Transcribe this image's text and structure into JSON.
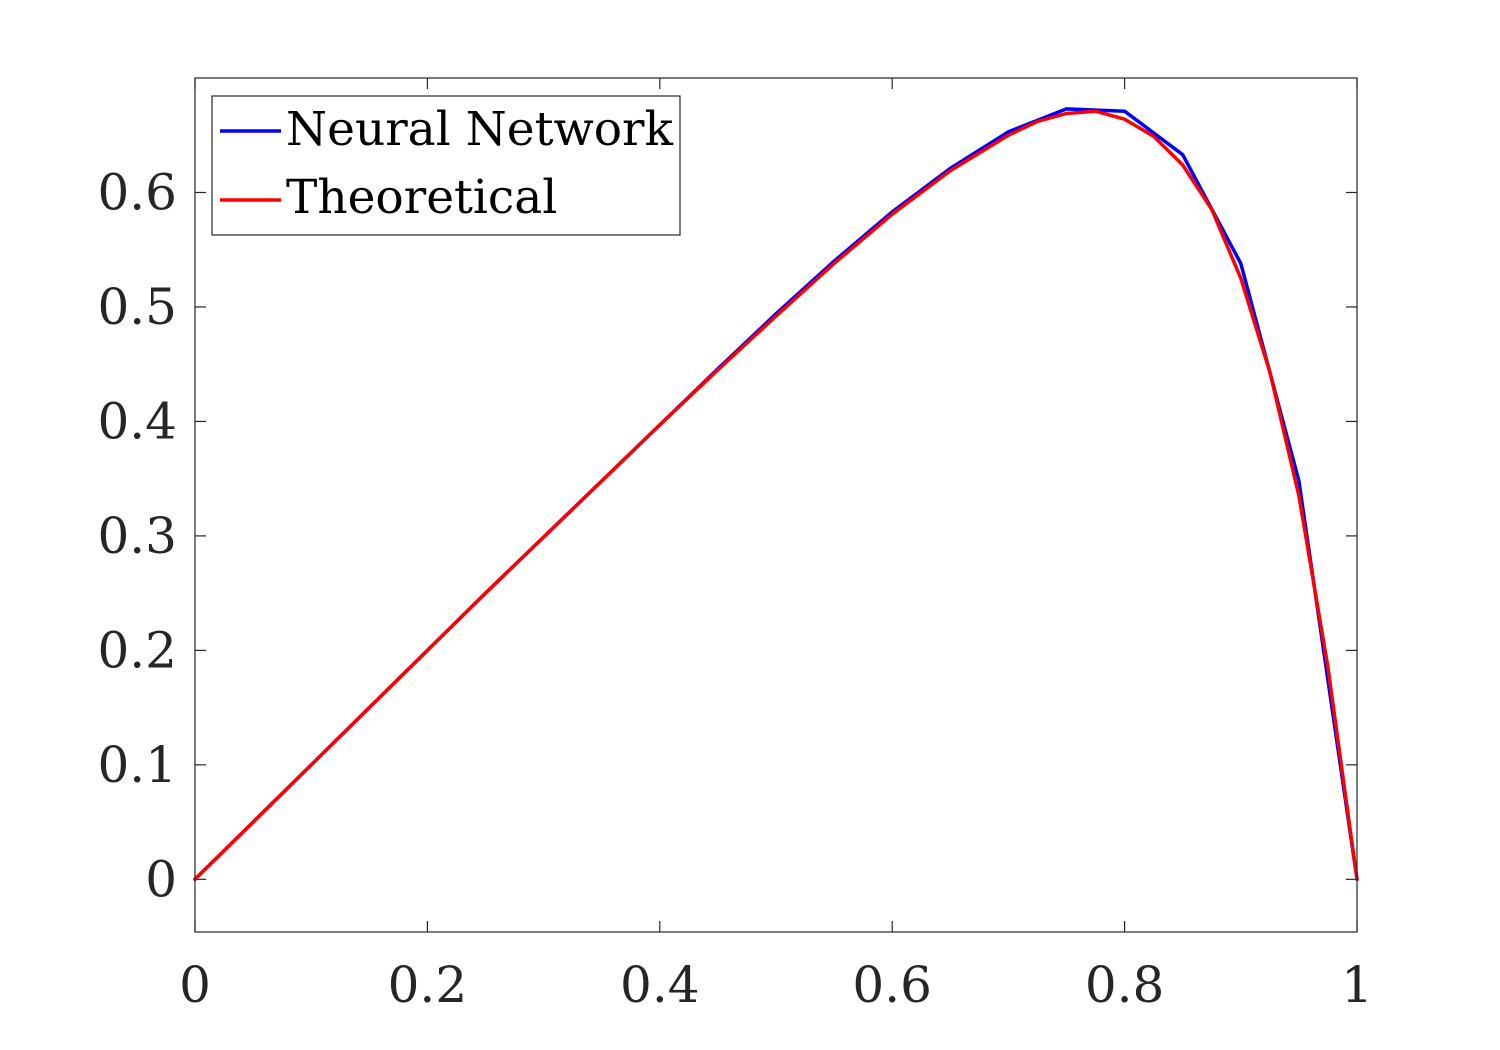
{
  "chart_data": {
    "type": "line",
    "title": "",
    "xlabel": "",
    "ylabel": "",
    "xlim": [
      0,
      1
    ],
    "ylim": [
      -0.046,
      0.7
    ],
    "grid": false,
    "legend_position": "top-left",
    "x_ticks": [
      0,
      0.2,
      0.4,
      0.6,
      0.8,
      1
    ],
    "x_tick_labels": [
      "0",
      "0.2",
      "0.4",
      "0.6",
      "0.8",
      "1"
    ],
    "y_ticks": [
      0,
      0.1,
      0.2,
      0.3,
      0.4,
      0.5,
      0.6
    ],
    "y_tick_labels": [
      "0",
      "0.1",
      "0.2",
      "0.3",
      "0.4",
      "0.5",
      "0.6"
    ],
    "series": [
      {
        "name": "Neural Network",
        "color": "#0000ff",
        "x": [
          0,
          0.05,
          0.1,
          0.15,
          0.2,
          0.25,
          0.3,
          0.35,
          0.4,
          0.45,
          0.5,
          0.55,
          0.6,
          0.65,
          0.7,
          0.75,
          0.8,
          0.85,
          0.9,
          0.95,
          1.0
        ],
        "y": [
          0,
          0.05,
          0.1,
          0.15,
          0.2,
          0.25,
          0.299,
          0.348,
          0.397,
          0.446,
          0.494,
          0.54,
          0.583,
          0.621,
          0.653,
          0.673,
          0.671,
          0.633,
          0.538,
          0.348,
          0
        ]
      },
      {
        "name": "Theoretical",
        "color": "#ff0000",
        "x": [
          0,
          0.05,
          0.1,
          0.15,
          0.2,
          0.25,
          0.3,
          0.35,
          0.4,
          0.45,
          0.5,
          0.55,
          0.6,
          0.65,
          0.7,
          0.725,
          0.75,
          0.775,
          0.8,
          0.825,
          0.85,
          0.875,
          0.9,
          0.925,
          0.95,
          0.975,
          1.0
        ],
        "y": [
          0,
          0.05,
          0.1,
          0.15,
          0.2,
          0.25,
          0.299,
          0.348,
          0.397,
          0.445,
          0.492,
          0.538,
          0.581,
          0.619,
          0.65,
          0.662,
          0.669,
          0.671,
          0.664,
          0.649,
          0.624,
          0.585,
          0.525,
          0.443,
          0.335,
          0.185,
          0
        ]
      }
    ]
  }
}
